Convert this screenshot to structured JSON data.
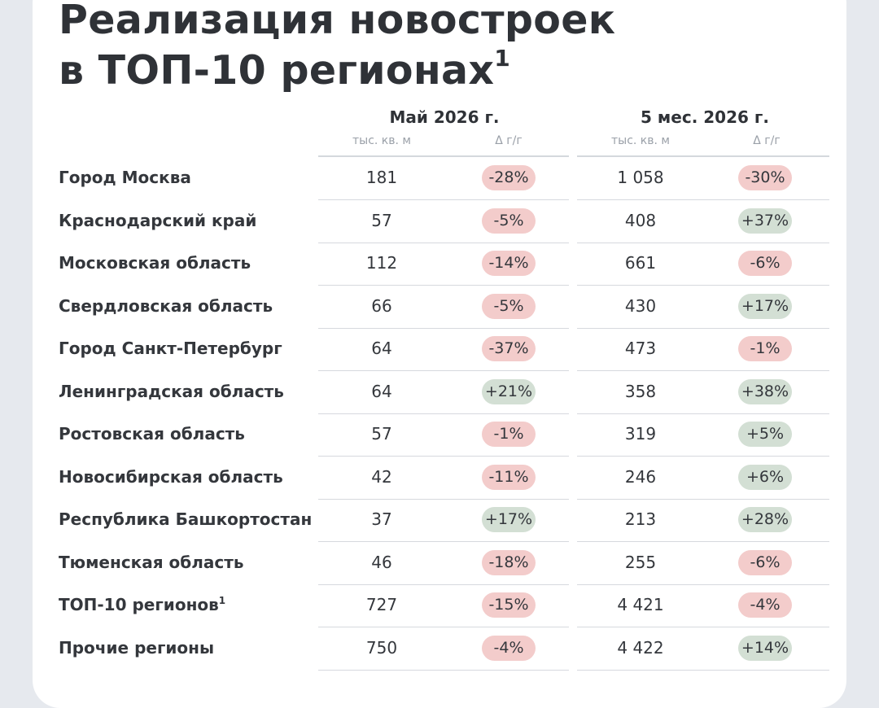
{
  "title": {
    "line1": "Реализация новостроек",
    "line2": "в ТОП-10 регионах",
    "footnote": "1"
  },
  "groups": [
    {
      "label": "Май 2026 г.",
      "unit": "тыс. кв. м",
      "delta": "Δ г/г"
    },
    {
      "label": "5 мес. 2026 г.",
      "unit": "тыс. кв. м",
      "delta": "Δ г/г"
    }
  ],
  "colors": {
    "negative_pill": "#f3cccb",
    "positive_pill": "#d3dfd4"
  },
  "rows": [
    {
      "region": "Город Москва",
      "footnote": "",
      "may": "181",
      "may_delta": "-28%",
      "ytd": "1 058",
      "ytd_delta": "-30%"
    },
    {
      "region": "Краснодарский край",
      "footnote": "",
      "may": "57",
      "may_delta": "-5%",
      "ytd": "408",
      "ytd_delta": "+37%"
    },
    {
      "region": "Московская область",
      "footnote": "",
      "may": "112",
      "may_delta": "-14%",
      "ytd": "661",
      "ytd_delta": "-6%"
    },
    {
      "region": "Свердловская область",
      "footnote": "",
      "may": "66",
      "may_delta": "-5%",
      "ytd": "430",
      "ytd_delta": "+17%"
    },
    {
      "region": "Город Санкт-Петербург",
      "footnote": "",
      "may": "64",
      "may_delta": "-37%",
      "ytd": "473",
      "ytd_delta": "-1%"
    },
    {
      "region": "Ленинградская область",
      "footnote": "",
      "may": "64",
      "may_delta": "+21%",
      "ytd": "358",
      "ytd_delta": "+38%"
    },
    {
      "region": "Ростовская область",
      "footnote": "",
      "may": "57",
      "may_delta": "-1%",
      "ytd": "319",
      "ytd_delta": "+5%"
    },
    {
      "region": "Новосибирская область",
      "footnote": "",
      "may": "42",
      "may_delta": "-11%",
      "ytd": "246",
      "ytd_delta": "+6%"
    },
    {
      "region": "Республика Башкортостан",
      "footnote": "",
      "may": "37",
      "may_delta": "+17%",
      "ytd": "213",
      "ytd_delta": "+28%"
    },
    {
      "region": "Тюменская область",
      "footnote": "",
      "may": "46",
      "may_delta": "-18%",
      "ytd": "255",
      "ytd_delta": "-6%"
    },
    {
      "region": "ТОП-10 регионов",
      "footnote": "1",
      "may": "727",
      "may_delta": "-15%",
      "ytd": "4 421",
      "ytd_delta": "-4%"
    },
    {
      "region": "Прочие регионы",
      "footnote": "",
      "may": "750",
      "may_delta": "-4%",
      "ytd": "4 422",
      "ytd_delta": "+14%"
    }
  ]
}
